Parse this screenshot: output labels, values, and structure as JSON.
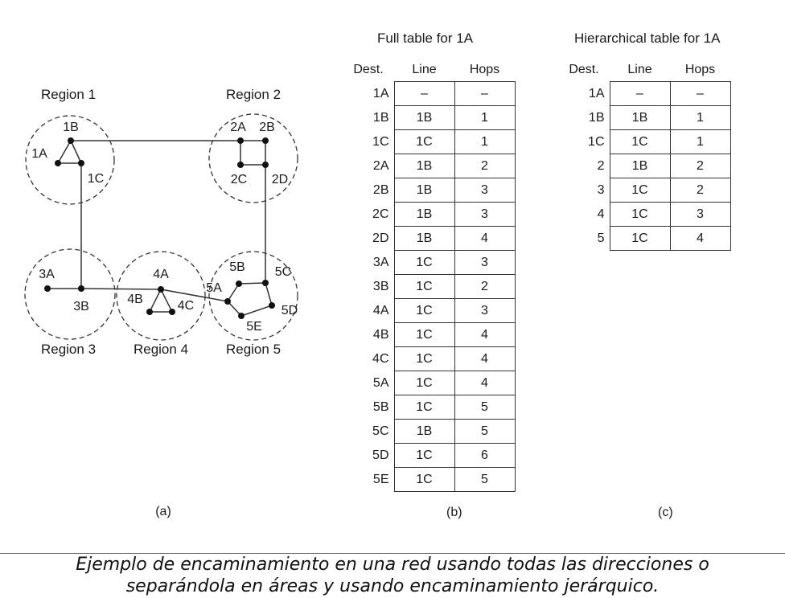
{
  "regions": {
    "r1": "Region 1",
    "r2": "Region 2",
    "r3": "Region 3",
    "r4": "Region 4",
    "r5": "Region 5"
  },
  "nodes": {
    "n1A": "1A",
    "n1B": "1B",
    "n1C": "1C",
    "n2A": "2A",
    "n2B": "2B",
    "n2C": "2C",
    "n2D": "2D",
    "n3A": "3A",
    "n3B": "3B",
    "n4A": "4A",
    "n4B": "4B",
    "n4C": "4C",
    "n5A": "5A",
    "n5B": "5B",
    "n5C": "5C",
    "n5D": "5D",
    "n5E": "5E"
  },
  "full_table": {
    "title": "Full table for 1A",
    "headers": [
      "Dest.",
      "Line",
      "Hops"
    ],
    "rows": [
      [
        "1A",
        "–",
        "–"
      ],
      [
        "1B",
        "1B",
        "1"
      ],
      [
        "1C",
        "1C",
        "1"
      ],
      [
        "2A",
        "1B",
        "2"
      ],
      [
        "2B",
        "1B",
        "3"
      ],
      [
        "2C",
        "1B",
        "3"
      ],
      [
        "2D",
        "1B",
        "4"
      ],
      [
        "3A",
        "1C",
        "3"
      ],
      [
        "3B",
        "1C",
        "2"
      ],
      [
        "4A",
        "1C",
        "3"
      ],
      [
        "4B",
        "1C",
        "4"
      ],
      [
        "4C",
        "1C",
        "4"
      ],
      [
        "5A",
        "1C",
        "4"
      ],
      [
        "5B",
        "1C",
        "5"
      ],
      [
        "5C",
        "1B",
        "5"
      ],
      [
        "5D",
        "1C",
        "6"
      ],
      [
        "5E",
        "1C",
        "5"
      ]
    ]
  },
  "hier_table": {
    "title": "Hierarchical table for 1A",
    "headers": [
      "Dest.",
      "Line",
      "Hops"
    ],
    "rows": [
      [
        "1A",
        "–",
        "–"
      ],
      [
        "1B",
        "1B",
        "1"
      ],
      [
        "1C",
        "1C",
        "1"
      ],
      [
        "2",
        "1B",
        "2"
      ],
      [
        "3",
        "1C",
        "2"
      ],
      [
        "4",
        "1C",
        "3"
      ],
      [
        "5",
        "1C",
        "4"
      ]
    ]
  },
  "sublabels": {
    "a": "(a)",
    "b": "(b)",
    "c": "(c)"
  },
  "caption": {
    "line1": "Ejemplo de encaminamiento en una red usando todas las direcciones o",
    "line2": "separándola en áreas y usando encaminamiento jerárquico."
  }
}
